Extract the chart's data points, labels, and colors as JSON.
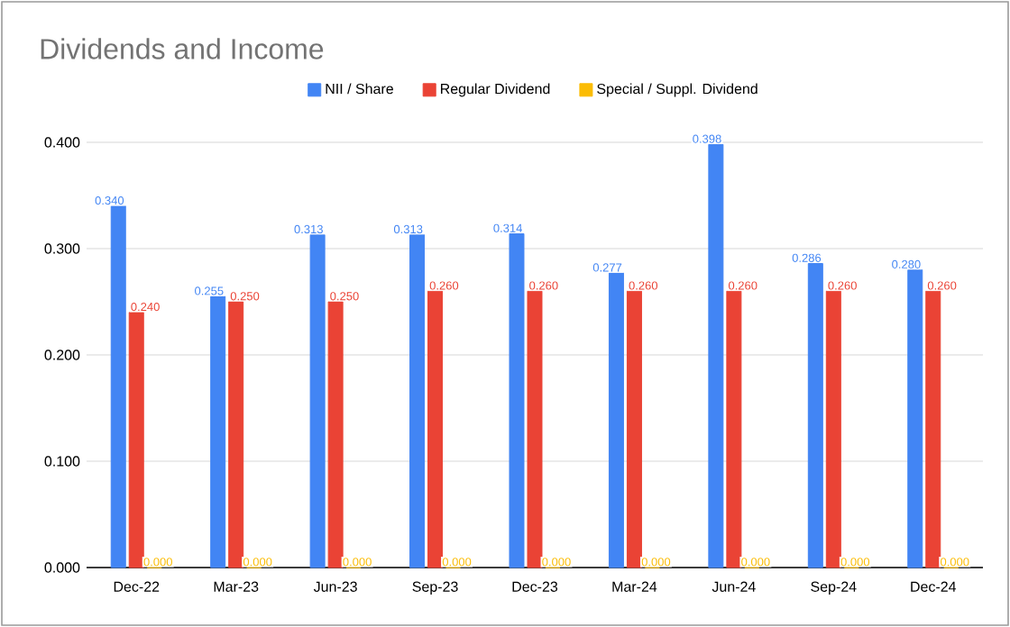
{
  "chart_data": {
    "type": "bar",
    "title": "Dividends and Income",
    "categories": [
      "Dec-22",
      "Mar-23",
      "Jun-23",
      "Sep-23",
      "Dec-23",
      "Mar-24",
      "Jun-24",
      "Sep-24",
      "Dec-24"
    ],
    "series": [
      {
        "name": "NII / Share",
        "color": "#4285f4",
        "values": [
          0.34,
          0.255,
          0.313,
          0.313,
          0.314,
          0.277,
          0.398,
          0.286,
          0.28
        ],
        "value_labels": [
          "0.340",
          "0.255",
          "0.313",
          "0.313",
          "0.314",
          "0.277",
          "0.398",
          "0.286",
          "0.280"
        ]
      },
      {
        "name": "Regular Dividend",
        "color": "#ea4335",
        "values": [
          0.24,
          0.25,
          0.25,
          0.26,
          0.26,
          0.26,
          0.26,
          0.26,
          0.26
        ],
        "value_labels": [
          "0.240",
          "0.250",
          "0.250",
          "0.260",
          "0.260",
          "0.260",
          "0.260",
          "0.260",
          "0.260"
        ]
      },
      {
        "name": "Special / Suppl. Dividend",
        "color": "#fbbc04",
        "values": [
          0,
          0,
          0,
          0,
          0,
          0,
          0,
          0,
          0
        ],
        "value_labels": [
          "0.000",
          "0.000",
          "0.000",
          "0.000",
          "0.000",
          "0.000",
          "0.000",
          "0.000",
          "0.000"
        ]
      }
    ],
    "ylim": [
      0,
      0.4
    ],
    "yticks": [
      {
        "value": 0,
        "label": "0.000"
      },
      {
        "value": 0.1,
        "label": "0.100"
      },
      {
        "value": 0.2,
        "label": "0.200"
      },
      {
        "value": 0.3,
        "label": "0.300"
      },
      {
        "value": 0.4,
        "label": "0.400"
      }
    ],
    "grid": "y",
    "legend": "top",
    "data_labels": true
  }
}
